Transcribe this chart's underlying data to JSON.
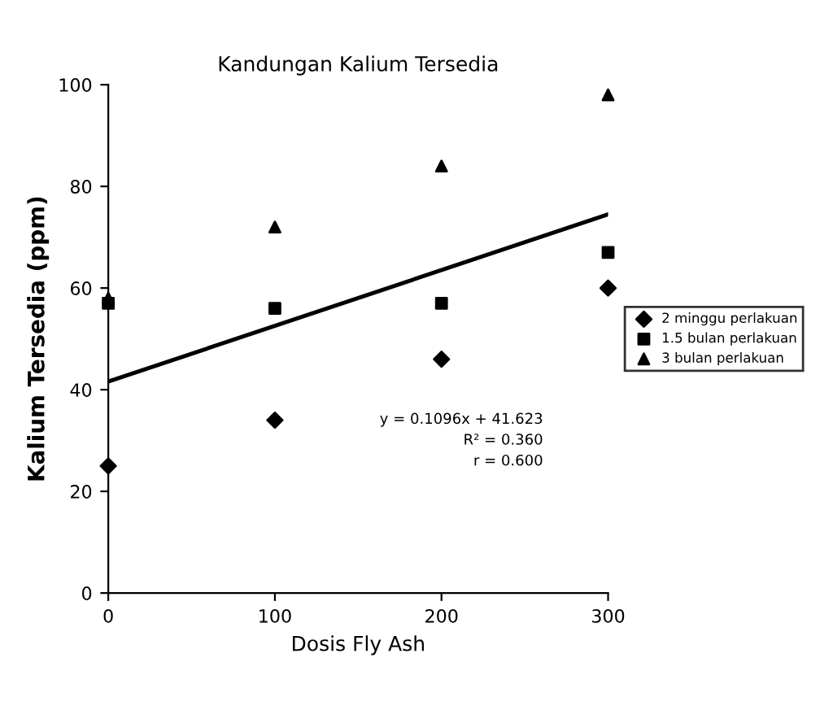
{
  "chart_data": {
    "type": "scatter",
    "title": "Kandungan Kalium Tersedia",
    "xlabel": "Dosis Fly Ash",
    "ylabel": "Kalium Tersedia (ppm)",
    "x": [
      0,
      100,
      200,
      300
    ],
    "series": [
      {
        "name": "2 minggu perlakuan",
        "color": "#000000",
        "marker": "diamond",
        "values": [
          25,
          34,
          46,
          60
        ]
      },
      {
        "name": "1.5 bulan perlakuan",
        "color": "#000000",
        "marker": "square",
        "values": [
          57,
          56,
          57,
          67
        ]
      },
      {
        "name": "3 bulan perlakuan",
        "color": "#000000",
        "marker": "triangle",
        "values": [
          58,
          72,
          84,
          98
        ]
      },
      {
        "type": "line",
        "color": "#000000",
        "x": [
          0,
          300
        ],
        "values": [
          41.6,
          74.5
        ]
      }
    ],
    "xlim": [
      0,
      300
    ],
    "xticks": [
      0,
      100,
      200,
      300
    ],
    "ylim": [
      0,
      100
    ],
    "yticks": [
      0,
      20,
      40,
      60,
      80,
      100
    ],
    "annotations": [
      "y = 0.1096x + 41.623\nR² = 0.360\nr = 0.600"
    ],
    "grid": false,
    "legend": "right"
  }
}
